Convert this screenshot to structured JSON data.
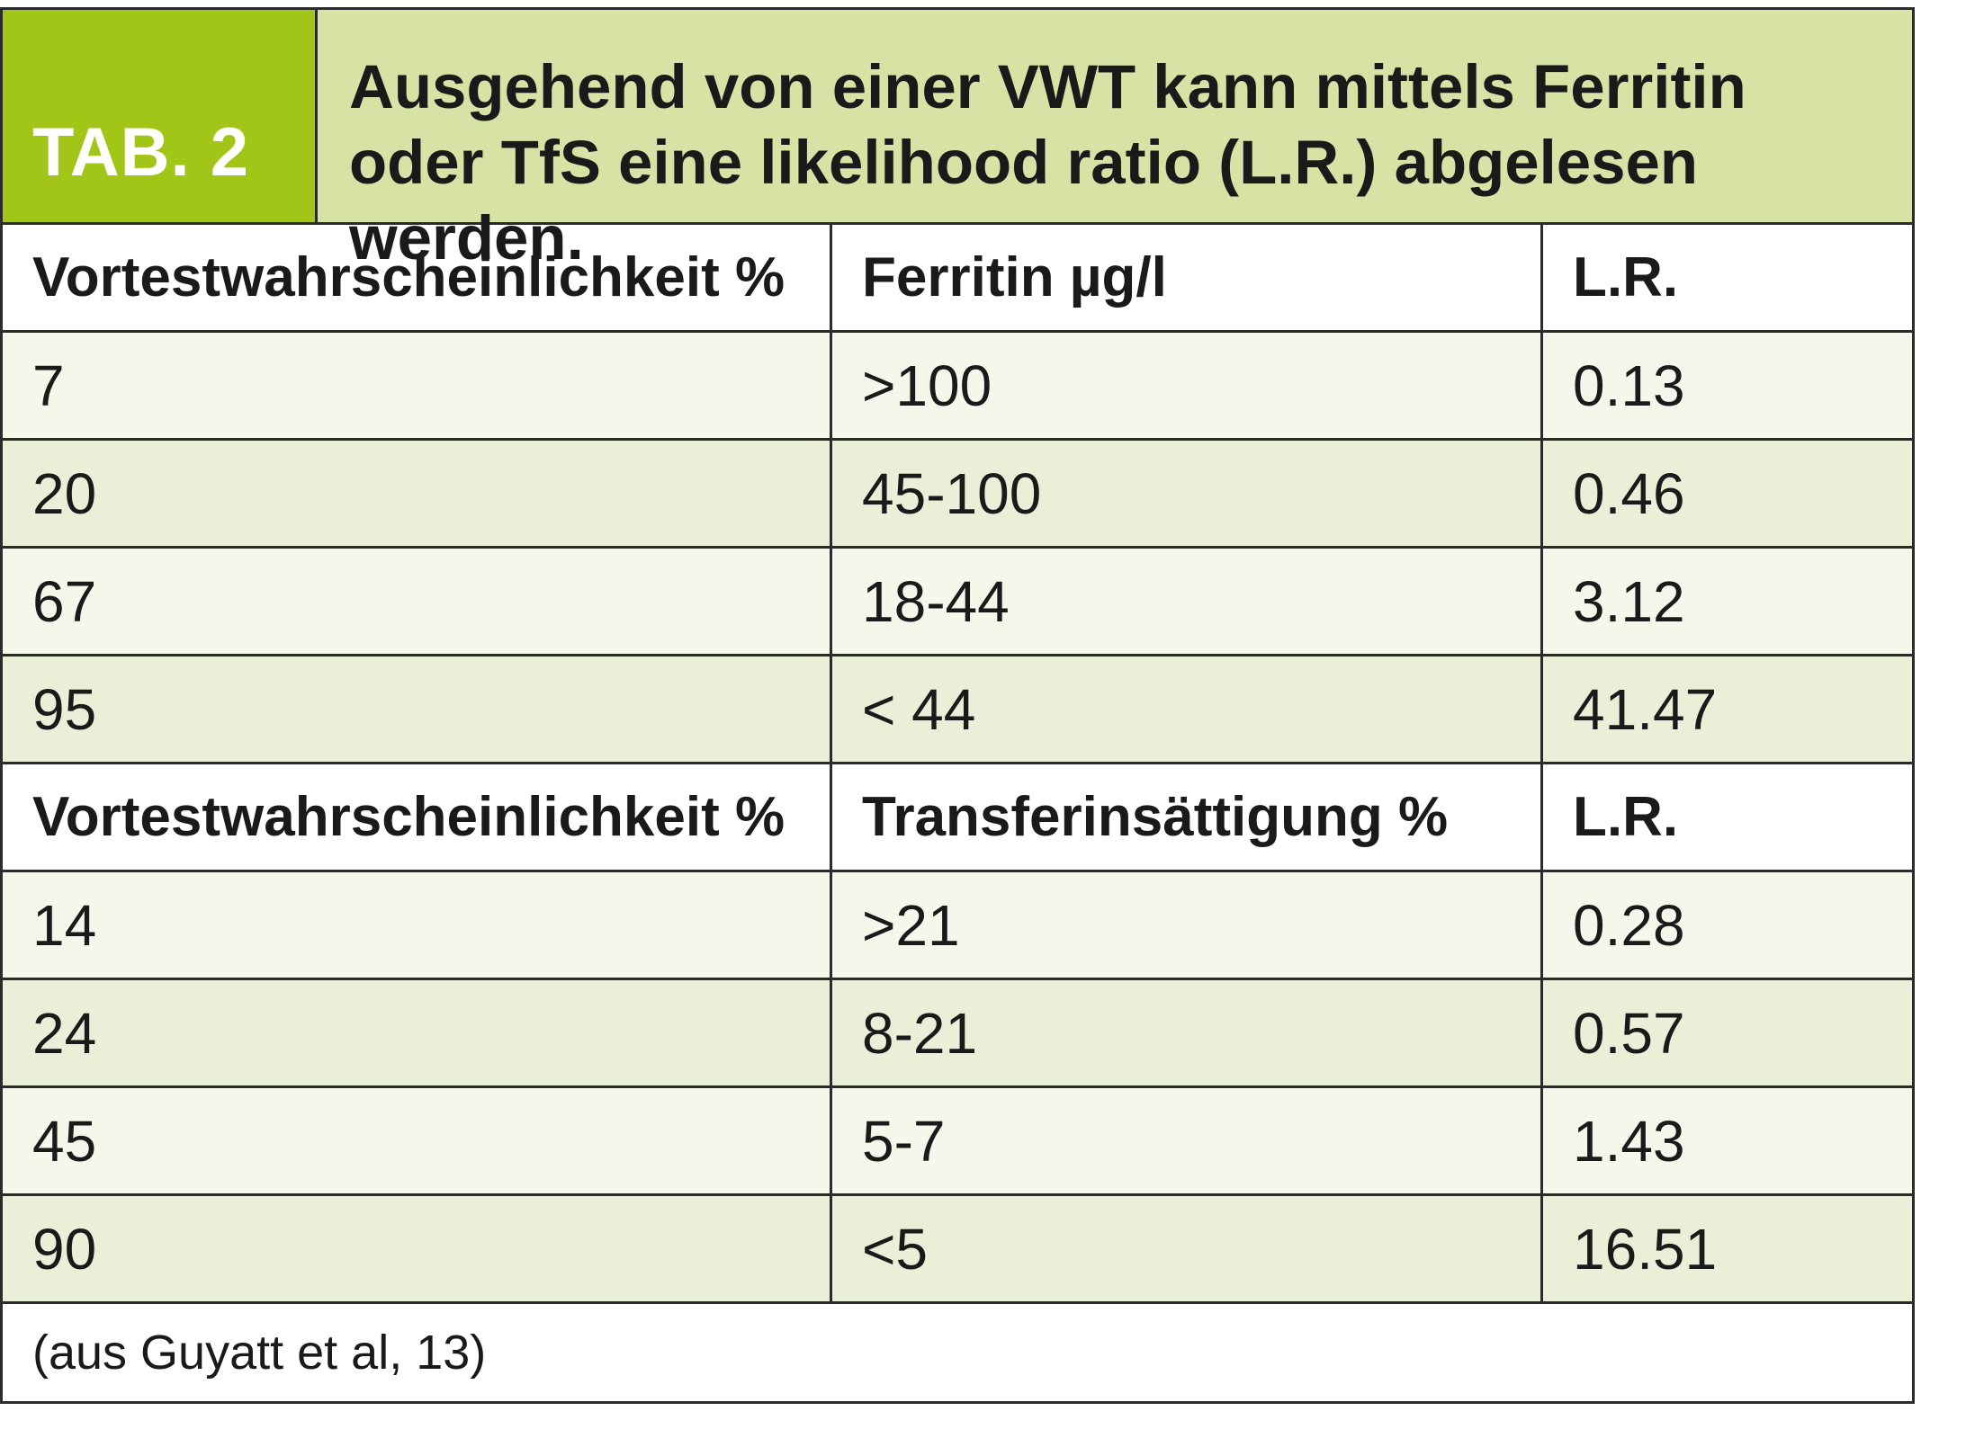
{
  "caption": {
    "tab_label": "TAB. 2",
    "title": "Ausgehend von einer VWT kann mittels Ferritin oder TfS eine likelihood ratio (L.R.) abgelesen werden."
  },
  "ferritin_section": {
    "headers": [
      "Vortestwahrscheinlichkeit %",
      "Ferritin µg/l",
      "L.R."
    ],
    "rows": [
      [
        "7",
        ">100",
        "0.13"
      ],
      [
        "20",
        "45-100",
        "0.46"
      ],
      [
        "67",
        "18-44",
        "3.12"
      ],
      [
        "95",
        "< 44",
        "41.47"
      ]
    ]
  },
  "transferrin_section": {
    "headers": [
      "Vortestwahrscheinlichkeit %",
      "Transferinsättigung %",
      "L.R."
    ],
    "rows": [
      [
        "14",
        ">21",
        "0.28"
      ],
      [
        "24",
        "8-21",
        "0.57"
      ],
      [
        "45",
        "5-7",
        "1.43"
      ],
      [
        "90",
        "<5",
        "16.51"
      ]
    ]
  },
  "footnote": "(aus Guyatt et al, 13)",
  "colors": {
    "tab_green": "#a2c618",
    "caption_bg": "#d6e3a4",
    "row_light": "#f5f7ea",
    "row_dark": "#eaf0d7",
    "border": "#2b2b2b"
  }
}
